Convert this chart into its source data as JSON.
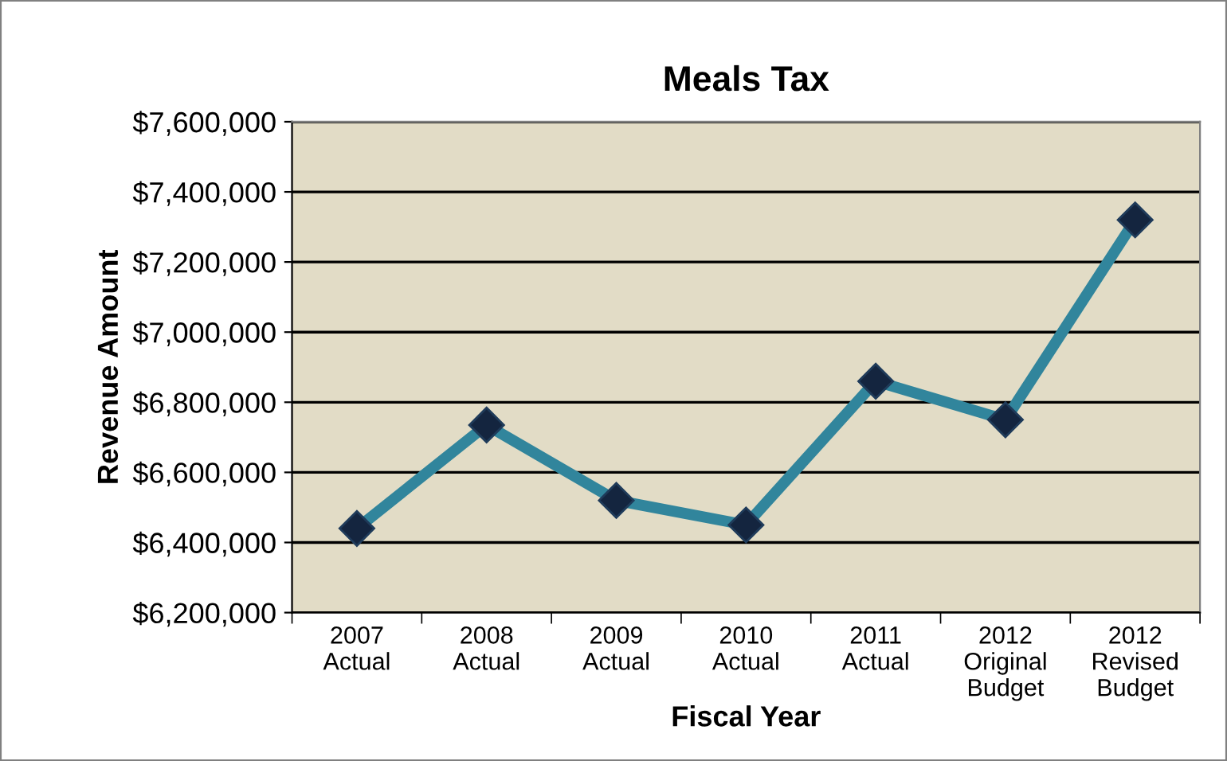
{
  "chart_data": {
    "type": "line",
    "title": "Meals Tax",
    "xlabel": "Fiscal Year",
    "ylabel": "Revenue Amount",
    "categories": [
      "2007\nActual",
      "2008\nActual",
      "2009\nActual",
      "2010\nActual",
      "2011\nActual",
      "2012\nOriginal\nBudget",
      "2012\nRevised\nBudget"
    ],
    "series": [
      {
        "color": "#31859c",
        "values": [
          6440000,
          6735000,
          6520000,
          6450000,
          6860000,
          6750000,
          7320000
        ]
      }
    ],
    "ylim": [
      6200000,
      7600000
    ],
    "yticks": [
      {
        "value": 6200000,
        "label": "$6,200,000"
      },
      {
        "value": 6400000,
        "label": "$6,400,000"
      },
      {
        "value": 6600000,
        "label": "$6,600,000"
      },
      {
        "value": 6800000,
        "label": "$6,800,000"
      },
      {
        "value": 7000000,
        "label": "$7,000,000"
      },
      {
        "value": 7200000,
        "label": "$7,200,000"
      },
      {
        "value": 7400000,
        "label": "$7,400,000"
      },
      {
        "value": 7600000,
        "label": "$7,600,000"
      }
    ],
    "grid": "y",
    "marker": "diamond",
    "line_style": "solid"
  }
}
